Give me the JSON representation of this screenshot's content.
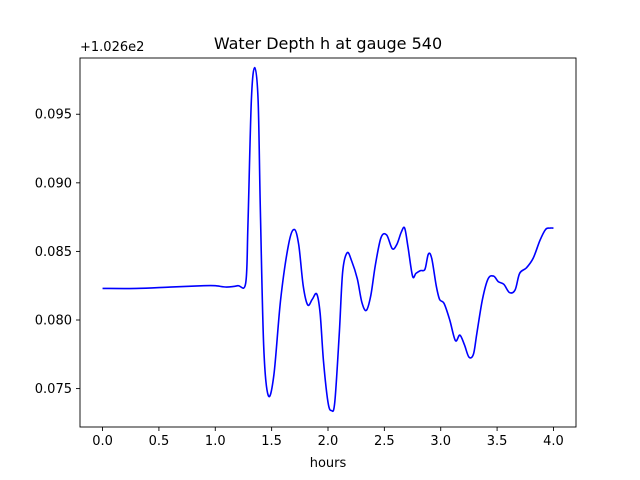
{
  "chart_data": {
    "type": "line",
    "title": "Water Depth h at gauge 540",
    "xlabel": "hours",
    "ylabel": "",
    "offset_text": "+1.026e2",
    "xlim": [
      -0.2,
      4.2
    ],
    "ylim": [
      0.0722,
      0.0991
    ],
    "xticks": [
      0.0,
      0.5,
      1.0,
      1.5,
      2.0,
      2.5,
      3.0,
      3.5,
      4.0
    ],
    "xtick_labels": [
      "0.0",
      "0.5",
      "1.0",
      "1.5",
      "2.0",
      "2.5",
      "3.0",
      "3.5",
      "4.0"
    ],
    "yticks": [
      0.075,
      0.08,
      0.085,
      0.09,
      0.095
    ],
    "ytick_labels": [
      "0.075",
      "0.080",
      "0.085",
      "0.090",
      "0.095"
    ],
    "grid": false,
    "series": [
      {
        "color": "#0000ff",
        "x": [
          0.0,
          0.3,
          0.6,
          0.9,
          1.0,
          1.1,
          1.2,
          1.27,
          1.29,
          1.32,
          1.35,
          1.38,
          1.4,
          1.43,
          1.47,
          1.52,
          1.58,
          1.65,
          1.7,
          1.74,
          1.78,
          1.82,
          1.86,
          1.9,
          1.93,
          1.96,
          2.0,
          2.03,
          2.06,
          2.1,
          2.13,
          2.17,
          2.21,
          2.26,
          2.3,
          2.34,
          2.38,
          2.42,
          2.47,
          2.52,
          2.57,
          2.61,
          2.65,
          2.68,
          2.71,
          2.75,
          2.78,
          2.82,
          2.86,
          2.89,
          2.92,
          2.96,
          2.99,
          3.03,
          3.08,
          3.13,
          3.17,
          3.21,
          3.25,
          3.29,
          3.32,
          3.37,
          3.42,
          3.47,
          3.51,
          3.56,
          3.61,
          3.66,
          3.7,
          3.76,
          3.82,
          3.88,
          3.93,
          3.97,
          4.0
        ],
        "y": [
          0.0823,
          0.0823,
          0.0824,
          0.0825,
          0.0825,
          0.0824,
          0.0825,
          0.0827,
          0.087,
          0.096,
          0.0984,
          0.096,
          0.088,
          0.078,
          0.0745,
          0.076,
          0.0815,
          0.0855,
          0.0866,
          0.0855,
          0.0825,
          0.0811,
          0.0815,
          0.0819,
          0.0805,
          0.077,
          0.074,
          0.0734,
          0.074,
          0.079,
          0.0835,
          0.0849,
          0.0843,
          0.083,
          0.0813,
          0.0807,
          0.0818,
          0.084,
          0.086,
          0.0862,
          0.0852,
          0.0855,
          0.0864,
          0.0867,
          0.0853,
          0.0832,
          0.0834,
          0.0836,
          0.0837,
          0.0848,
          0.0845,
          0.0825,
          0.0815,
          0.0812,
          0.08,
          0.0785,
          0.0789,
          0.0782,
          0.0773,
          0.0775,
          0.079,
          0.0815,
          0.083,
          0.0832,
          0.0828,
          0.0826,
          0.082,
          0.0822,
          0.0834,
          0.0838,
          0.0845,
          0.0858,
          0.0866,
          0.0867,
          0.0867
        ]
      }
    ]
  }
}
